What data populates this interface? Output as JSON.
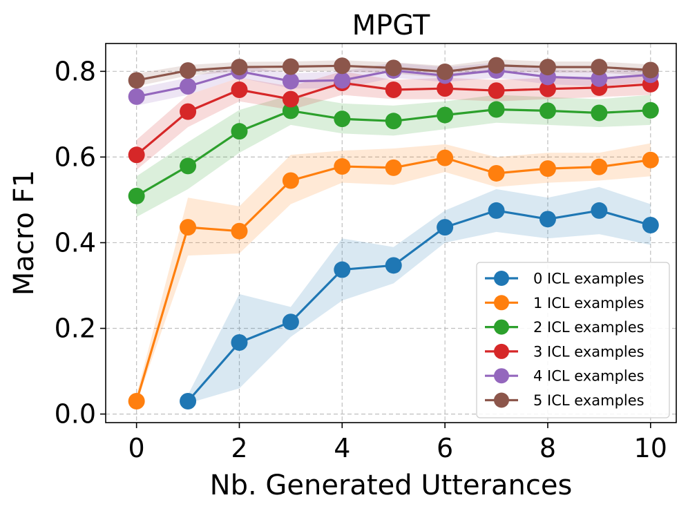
{
  "chart_data": {
    "type": "line",
    "title": "MPGT",
    "xlabel": "Nb. Generated Utterances",
    "ylabel": "Macro F1",
    "xlim": [
      -0.6,
      10.5
    ],
    "ylim": [
      -0.02,
      0.865
    ],
    "xticks": [
      0,
      2,
      4,
      6,
      8,
      10
    ],
    "xtick_labels": [
      "0",
      "2",
      "4",
      "6",
      "8",
      "10"
    ],
    "yticks": [
      0.0,
      0.2,
      0.4,
      0.6,
      0.8
    ],
    "ytick_labels": [
      "0.0",
      "0.2",
      "0.4",
      "0.6",
      "0.8"
    ],
    "grid": true,
    "legend_position": "lower-right",
    "series": [
      {
        "name": "0 ICL examples",
        "color": "#1f77b4",
        "x": [
          1,
          2,
          3,
          4,
          5,
          6,
          7,
          8,
          9,
          10
        ],
        "values": [
          0.03,
          0.167,
          0.215,
          0.337,
          0.347,
          0.436,
          0.475,
          0.455,
          0.475,
          0.441
        ],
        "lower": [
          0.025,
          0.06,
          0.18,
          0.265,
          0.305,
          0.4,
          0.425,
          0.41,
          0.42,
          0.395
        ],
        "upper": [
          0.045,
          0.28,
          0.25,
          0.41,
          0.39,
          0.475,
          0.525,
          0.505,
          0.53,
          0.49
        ]
      },
      {
        "name": "1 ICL examples",
        "color": "#ff7f0e",
        "x": [
          0,
          1,
          2,
          3,
          4,
          5,
          6,
          7,
          8,
          9,
          10
        ],
        "values": [
          0.03,
          0.436,
          0.427,
          0.545,
          0.578,
          0.575,
          0.598,
          0.562,
          0.573,
          0.577,
          0.593
        ],
        "lower": [
          0.025,
          0.37,
          0.375,
          0.49,
          0.54,
          0.535,
          0.565,
          0.53,
          0.54,
          0.545,
          0.555
        ],
        "upper": [
          0.045,
          0.505,
          0.485,
          0.605,
          0.615,
          0.62,
          0.63,
          0.6,
          0.61,
          0.61,
          0.632
        ]
      },
      {
        "name": "2 ICL examples",
        "color": "#2ca02c",
        "x": [
          0,
          1,
          2,
          3,
          4,
          5,
          6,
          7,
          8,
          9,
          10
        ],
        "values": [
          0.509,
          0.579,
          0.66,
          0.708,
          0.689,
          0.684,
          0.698,
          0.711,
          0.708,
          0.703,
          0.709
        ],
        "lower": [
          0.46,
          0.525,
          0.61,
          0.675,
          0.655,
          0.65,
          0.665,
          0.68,
          0.675,
          0.67,
          0.675
        ],
        "upper": [
          0.555,
          0.635,
          0.71,
          0.745,
          0.725,
          0.72,
          0.73,
          0.745,
          0.74,
          0.735,
          0.745
        ]
      },
      {
        "name": "3 ICL examples",
        "color": "#d62728",
        "x": [
          0,
          1,
          2,
          3,
          4,
          5,
          6,
          7,
          8,
          9,
          10
        ],
        "values": [
          0.605,
          0.706,
          0.757,
          0.735,
          0.773,
          0.757,
          0.76,
          0.755,
          0.759,
          0.762,
          0.77
        ],
        "lower": [
          0.57,
          0.67,
          0.73,
          0.71,
          0.745,
          0.735,
          0.735,
          0.73,
          0.735,
          0.74,
          0.745
        ],
        "upper": [
          0.64,
          0.745,
          0.785,
          0.765,
          0.8,
          0.78,
          0.785,
          0.78,
          0.785,
          0.785,
          0.795
        ]
      },
      {
        "name": "4 ICL examples",
        "color": "#9467bd",
        "x": [
          0,
          1,
          2,
          3,
          4,
          5,
          6,
          7,
          8,
          9,
          10
        ],
        "values": [
          0.741,
          0.765,
          0.8,
          0.777,
          0.779,
          0.802,
          0.79,
          0.802,
          0.787,
          0.783,
          0.792
        ],
        "lower": [
          0.72,
          0.745,
          0.785,
          0.76,
          0.76,
          0.785,
          0.775,
          0.785,
          0.77,
          0.765,
          0.775
        ],
        "upper": [
          0.76,
          0.785,
          0.815,
          0.795,
          0.8,
          0.82,
          0.81,
          0.82,
          0.805,
          0.8,
          0.81
        ]
      },
      {
        "name": "5 ICL examples",
        "color": "#8c564b",
        "x": [
          0,
          1,
          2,
          3,
          4,
          5,
          6,
          7,
          8,
          9,
          10
        ],
        "values": [
          0.779,
          0.802,
          0.81,
          0.811,
          0.813,
          0.808,
          0.799,
          0.814,
          0.81,
          0.81,
          0.803
        ],
        "lower": [
          0.765,
          0.79,
          0.8,
          0.8,
          0.8,
          0.795,
          0.785,
          0.8,
          0.797,
          0.797,
          0.79
        ],
        "upper": [
          0.795,
          0.815,
          0.822,
          0.823,
          0.826,
          0.821,
          0.813,
          0.828,
          0.823,
          0.823,
          0.816
        ]
      }
    ]
  }
}
